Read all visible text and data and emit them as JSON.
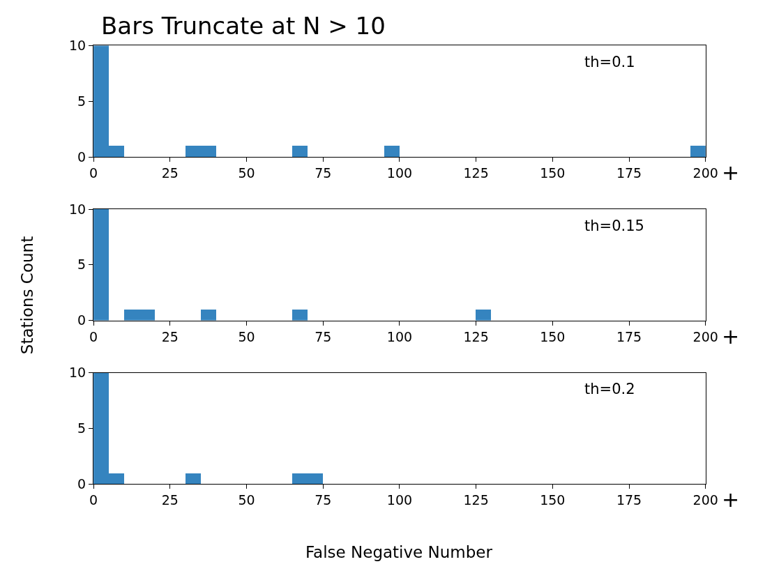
{
  "chart_data": [
    {
      "type": "histogram",
      "title": "Bars Truncate at N > 10",
      "annotations": [
        "th=0.1",
        "+"
      ],
      "color": "#3584bf",
      "bins": [
        0,
        5,
        10,
        15,
        20,
        25,
        30,
        35,
        40,
        45,
        50,
        55,
        60,
        65,
        70,
        75,
        80,
        85,
        90,
        95,
        100,
        105,
        110,
        115,
        120,
        125,
        130,
        135,
        140,
        145,
        150,
        155,
        160,
        165,
        170,
        175,
        180,
        185,
        190,
        195,
        200
      ],
      "values": [
        10,
        1,
        0,
        0,
        0,
        0,
        1,
        1,
        0,
        0,
        0,
        0,
        0,
        1,
        0,
        0,
        0,
        0,
        0,
        1,
        0,
        0,
        0,
        0,
        0,
        0,
        0,
        0,
        0,
        0,
        0,
        0,
        0,
        0,
        0,
        0,
        0,
        0,
        0,
        1
      ],
      "xlim": [
        0,
        200
      ],
      "xticks": [
        0,
        25,
        50,
        75,
        100,
        125,
        150,
        175,
        200
      ],
      "ylim": [
        0,
        10
      ],
      "yticks": [
        0,
        5,
        10
      ]
    },
    {
      "type": "histogram",
      "ylabel": "Stations Count",
      "annotations": [
        "th=0.15",
        "+"
      ],
      "color": "#3584bf",
      "bins": [
        0,
        5,
        10,
        15,
        20,
        25,
        30,
        35,
        40,
        45,
        50,
        55,
        60,
        65,
        70,
        75,
        80,
        85,
        90,
        95,
        100,
        105,
        110,
        115,
        120,
        125,
        130,
        135,
        140,
        145,
        150,
        155,
        160,
        165,
        170,
        175,
        180,
        185,
        190,
        195,
        200
      ],
      "values": [
        10,
        0,
        1,
        1,
        0,
        0,
        0,
        1,
        0,
        0,
        0,
        0,
        0,
        1,
        0,
        0,
        0,
        0,
        0,
        0,
        0,
        0,
        0,
        0,
        0,
        1,
        0,
        0,
        0,
        0,
        0,
        0,
        0,
        0,
        0,
        0,
        0,
        0,
        0,
        0
      ],
      "xlim": [
        0,
        200
      ],
      "xticks": [
        0,
        25,
        50,
        75,
        100,
        125,
        150,
        175,
        200
      ],
      "ylim": [
        0,
        10
      ],
      "yticks": [
        0,
        5,
        10
      ]
    },
    {
      "type": "histogram",
      "xlabel": "False Negative Number",
      "annotations": [
        "th=0.2",
        "+"
      ],
      "color": "#3584bf",
      "bins": [
        0,
        5,
        10,
        15,
        20,
        25,
        30,
        35,
        40,
        45,
        50,
        55,
        60,
        65,
        70,
        75,
        80,
        85,
        90,
        95,
        100,
        105,
        110,
        115,
        120,
        125,
        130,
        135,
        140,
        145,
        150,
        155,
        160,
        165,
        170,
        175,
        180,
        185,
        190,
        195,
        200
      ],
      "values": [
        10,
        1,
        0,
        0,
        0,
        0,
        1,
        0,
        0,
        0,
        0,
        0,
        0,
        1,
        1,
        0,
        0,
        0,
        0,
        0,
        0,
        0,
        0,
        0,
        0,
        0,
        0,
        0,
        0,
        0,
        0,
        0,
        0,
        0,
        0,
        0,
        0,
        0,
        0,
        0
      ],
      "xlim": [
        0,
        200
      ],
      "xticks": [
        0,
        25,
        50,
        75,
        100,
        125,
        150,
        175,
        200
      ],
      "ylim": [
        0,
        10
      ],
      "yticks": [
        0,
        5,
        10
      ]
    }
  ]
}
